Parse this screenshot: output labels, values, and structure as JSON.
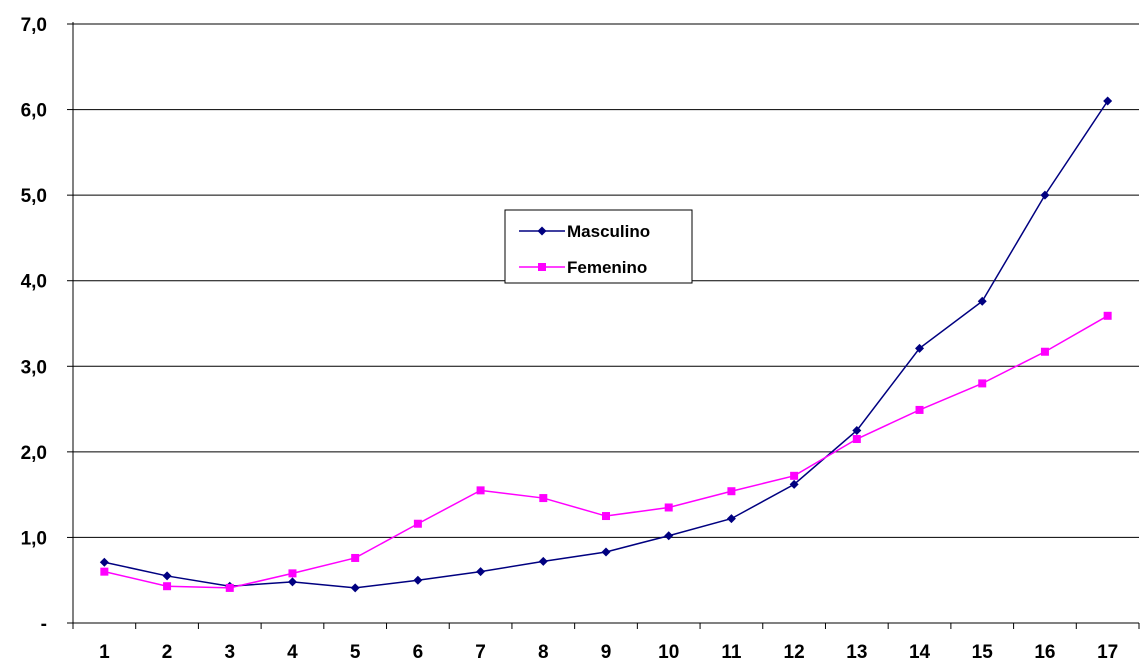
{
  "chart_data": {
    "type": "line",
    "x": [
      "1",
      "2",
      "3",
      "4",
      "5",
      "6",
      "7",
      "8",
      "9",
      "10",
      "11",
      "12",
      "13",
      "14",
      "15",
      "16",
      "17"
    ],
    "series": [
      {
        "name": "Masculino",
        "color": "#000080",
        "marker": "diamond",
        "values": [
          0.71,
          0.55,
          0.43,
          0.48,
          0.41,
          0.5,
          0.6,
          0.72,
          0.83,
          1.02,
          1.22,
          1.62,
          2.25,
          3.21,
          3.76,
          5.0,
          6.1
        ]
      },
      {
        "name": "Femenino",
        "color": "#FF00FF",
        "marker": "square",
        "values": [
          0.6,
          0.43,
          0.41,
          0.58,
          0.76,
          1.16,
          1.55,
          1.46,
          1.25,
          1.35,
          1.54,
          1.72,
          2.15,
          2.49,
          2.8,
          3.17,
          3.59
        ]
      }
    ],
    "y_tick_labels": [
      "-",
      "1,0",
      "2,0",
      "3,0",
      "4,0",
      "5,0",
      "6,0",
      "7,0"
    ],
    "ylim": [
      0,
      7
    ],
    "title": "",
    "xlabel": "",
    "ylabel": "",
    "grid": "horizontal",
    "legend": "center",
    "colors": {
      "gridline": "#000000",
      "axis": "#000000",
      "background": "#FFFFFF"
    }
  }
}
